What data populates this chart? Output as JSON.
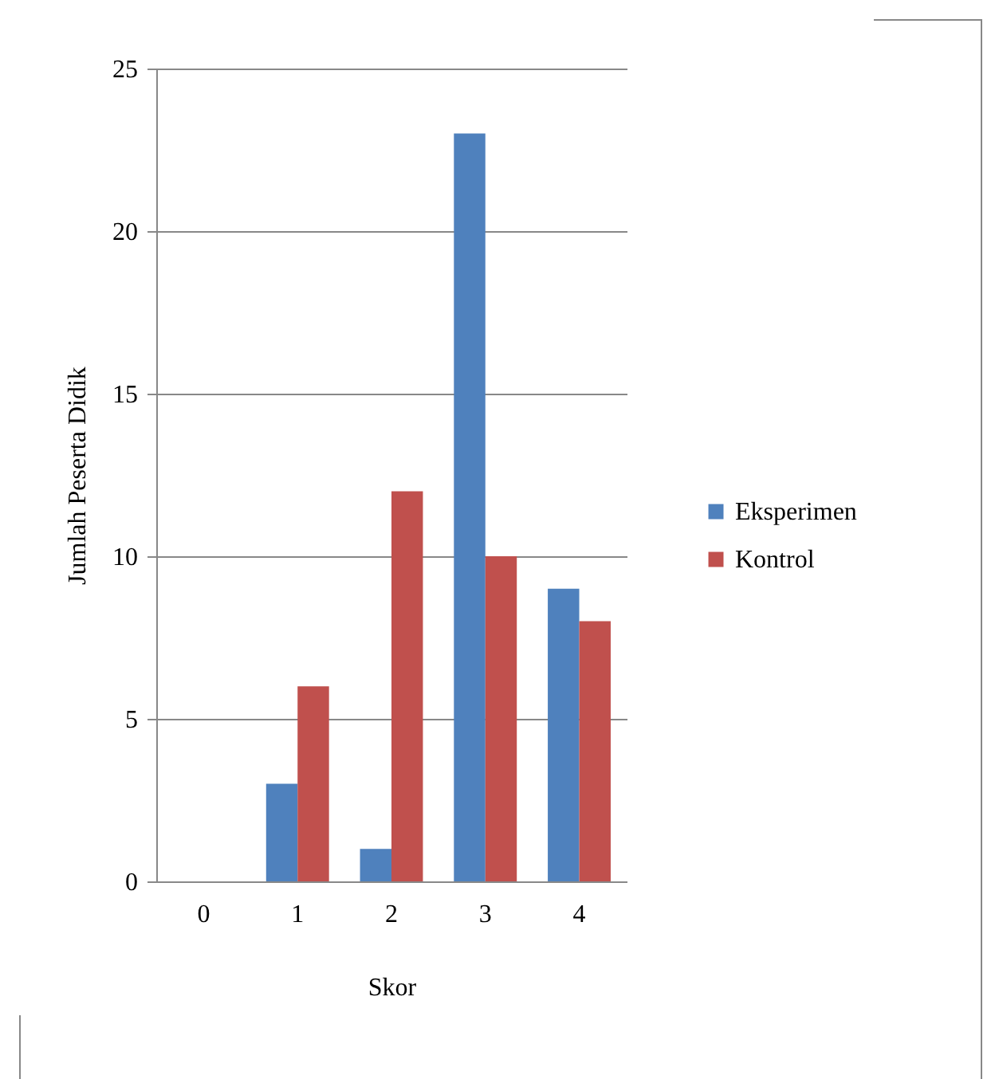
{
  "chart_data": {
    "type": "bar",
    "xlabel": "Skor",
    "ylabel": "Jumlah Peserta Didik",
    "categories": [
      "0",
      "1",
      "2",
      "3",
      "4"
    ],
    "series": [
      {
        "name": "Eksperimen",
        "color": "#4f81bd",
        "values": [
          0,
          3,
          1,
          23,
          9
        ]
      },
      {
        "name": "Kontrol",
        "color": "#c0504d",
        "values": [
          0,
          6,
          12,
          10,
          8
        ]
      }
    ],
    "ylim": [
      0,
      25
    ],
    "yticks": [
      0,
      5,
      10,
      15,
      20,
      25
    ],
    "grid": "y",
    "legend": "right"
  }
}
